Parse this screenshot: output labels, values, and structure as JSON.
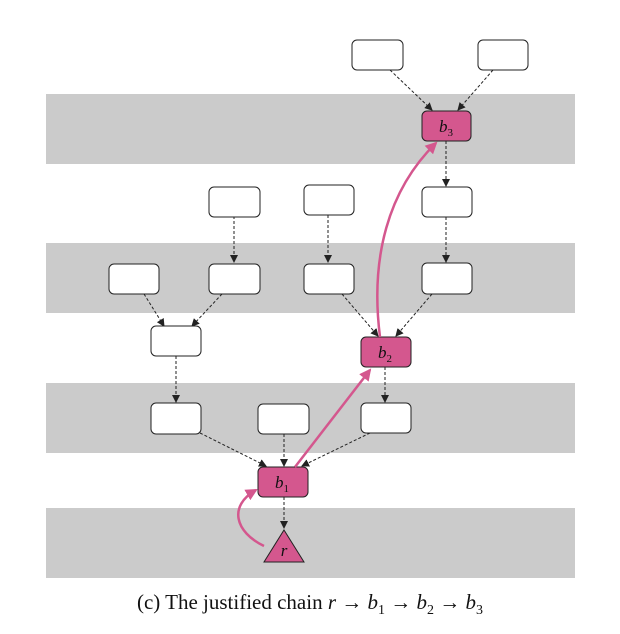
{
  "colors": {
    "band": "#cbcbcb",
    "highlight_fill": "#d4578e",
    "highlight_stroke": "#c04a7a",
    "block_fill": "#ffffff",
    "block_stroke": "#222222",
    "edge": "#222222"
  },
  "labels": {
    "b1_base": "b",
    "b1_sub": "1",
    "b2_base": "b",
    "b2_sub": "2",
    "b3_base": "b",
    "b3_sub": "3",
    "root": "r"
  },
  "caption": {
    "prefix": "(c) The justified chain",
    "r": "r",
    "arrow": "→",
    "b": "b",
    "s1": "1",
    "s2": "2",
    "s3": "3"
  }
}
